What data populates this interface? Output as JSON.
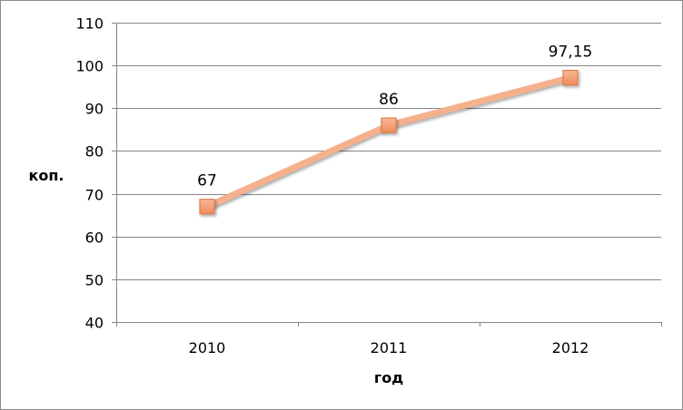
{
  "chart_data": {
    "type": "line",
    "title": "",
    "xlabel": "год",
    "ylabel": "коп.",
    "categories": [
      "2010",
      "2011",
      "2012"
    ],
    "series": [
      {
        "values": [
          67,
          86,
          97.15
        ],
        "data_labels": [
          "67",
          "86",
          "97,15"
        ]
      }
    ],
    "ylim": [
      40,
      110
    ],
    "yticks": [
      40,
      50,
      60,
      70,
      80,
      90,
      100,
      110
    ],
    "ytick_labels": [
      "40",
      "50",
      "60",
      "70",
      "80",
      "90",
      "100",
      "110"
    ],
    "grid": "horizontal",
    "legend": "none",
    "colors": {
      "line": "#f5b08c",
      "marker_fill": "#f2956a",
      "marker_edge": "#e07e4f",
      "grid": "#868686"
    }
  }
}
